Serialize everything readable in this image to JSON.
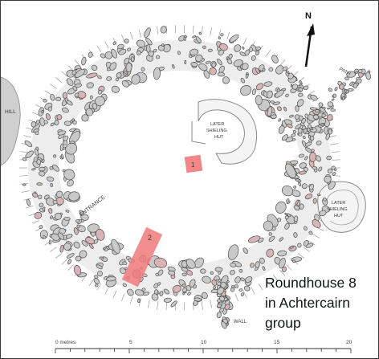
{
  "plan": {
    "north_label": "N",
    "labels": {
      "hill": "HILL",
      "path": "PATH",
      "hut_center": [
        "LATER",
        "SHIELING",
        "HUT"
      ],
      "hut_right": [
        "LATER",
        "SHIELING",
        "HUT"
      ],
      "entrance": "ENTRANCE",
      "wall": "WALL"
    },
    "trenches": {
      "trench_1": "1",
      "trench_2": "2"
    },
    "colors": {
      "stone_fill": "#c9c9c9",
      "stone_stroke": "#505050",
      "trench": "#f07a7a",
      "hill": "#cfcfcf",
      "halo": "#eeeeee"
    }
  },
  "scale": {
    "unit_label": "0 metres",
    "ticks": [
      "5",
      "10",
      "15",
      "20"
    ]
  },
  "caption": {
    "line1": "Roundhouse 8",
    "line2": "in Achtercairn",
    "line3": "group"
  }
}
